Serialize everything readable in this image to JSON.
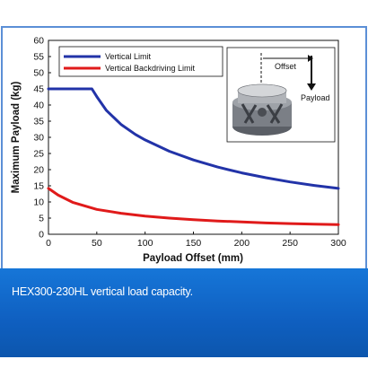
{
  "chart_data": {
    "type": "line",
    "xlabel": "Payload Offset (mm)",
    "ylabel": "Maximum Payload (kg)",
    "xlim": [
      0,
      300
    ],
    "ylim": [
      0,
      60
    ],
    "xticks": [
      0,
      50,
      100,
      150,
      200,
      250,
      300
    ],
    "yticks": [
      0,
      5,
      10,
      15,
      20,
      25,
      30,
      35,
      40,
      45,
      50,
      55,
      60
    ],
    "legend_position": "top-left",
    "series": [
      {
        "name": "Vertical Limit",
        "color": "#2233a8",
        "x": [
          0,
          45,
          50,
          60,
          75,
          90,
          100,
          125,
          150,
          175,
          200,
          225,
          250,
          275,
          300
        ],
        "values": [
          45,
          45,
          42.6,
          38.3,
          34.0,
          30.9,
          29.2,
          25.7,
          23.0,
          20.8,
          19.0,
          17.5,
          16.2,
          15.1,
          14.2
        ]
      },
      {
        "name": "Vertical Backdriving Limit",
        "color": "#e01a1a",
        "x": [
          0,
          10,
          25,
          50,
          75,
          100,
          125,
          150,
          175,
          200,
          225,
          250,
          275,
          300
        ],
        "values": [
          14.2,
          12.1,
          9.9,
          7.7,
          6.5,
          5.6,
          5.0,
          4.5,
          4.1,
          3.8,
          3.5,
          3.3,
          3.1,
          3.0
        ]
      }
    ],
    "inset": {
      "offset_label": "Offset",
      "payload_label": "Payload"
    }
  },
  "caption": "HEX300-230HL vertical load capacity."
}
